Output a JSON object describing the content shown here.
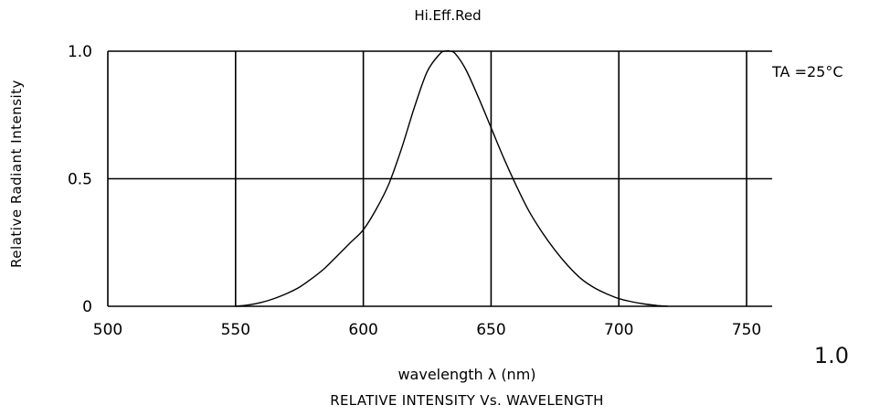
{
  "chart_data": {
    "type": "line",
    "title": "Hi.Eff.Red",
    "annotation": "TA =25°C",
    "xlabel": "wavelength λ (nm)",
    "ylabel": "Relative Radiant Intensity",
    "caption": "RELATIVE INTENSITY Vs. WAVELENGTH",
    "xlim": [
      500,
      760
    ],
    "ylim": [
      0,
      1.0
    ],
    "x_ticks": [
      500,
      550,
      600,
      650,
      700,
      750
    ],
    "x_tick_labels": [
      "500",
      "550",
      "600",
      "650",
      "700",
      "750"
    ],
    "y_ticks": [
      0,
      0.5,
      1.0
    ],
    "y_tick_labels": [
      "0",
      "0.5",
      "1.0"
    ],
    "grid": true,
    "series": [
      {
        "x": [
          550,
          555,
          560,
          565,
          570,
          575,
          580,
          585,
          590,
          595,
          600,
          605,
          610,
          615,
          620,
          625,
          630,
          632,
          634,
          636,
          640,
          645,
          650,
          655,
          660,
          665,
          670,
          675,
          680,
          685,
          690,
          695,
          700,
          705,
          710,
          715,
          719
        ],
        "values": [
          0.0,
          0.005,
          0.015,
          0.03,
          0.05,
          0.075,
          0.11,
          0.15,
          0.2,
          0.25,
          0.3,
          0.38,
          0.48,
          0.62,
          0.78,
          0.92,
          0.99,
          1.0,
          1.0,
          0.99,
          0.93,
          0.82,
          0.7,
          0.58,
          0.47,
          0.37,
          0.29,
          0.22,
          0.16,
          0.11,
          0.075,
          0.05,
          0.03,
          0.018,
          0.009,
          0.003,
          0.0
        ]
      }
    ]
  },
  "page": {
    "page_number": "1.0"
  }
}
